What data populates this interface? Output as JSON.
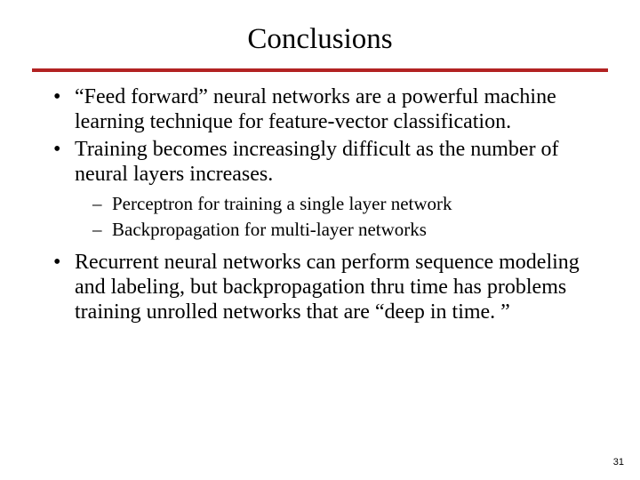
{
  "title": "Conclusions",
  "colors": {
    "rule": "#b22222",
    "text": "#000000",
    "background": "#ffffff"
  },
  "typography": {
    "title_fontsize": 33,
    "bullet_fontsize": 24,
    "subbullet_fontsize": 21,
    "font_family": "Times New Roman"
  },
  "bullets": {
    "b1": "“Feed forward” neural networks are a powerful machine learning technique for feature-vector classification.",
    "b2": "Training becomes increasingly difficult as the number of neural layers increases.",
    "b2_sub": {
      "s1": "Perceptron for training a single layer network",
      "s2": "Backpropagation for multi-layer networks"
    },
    "b3": "Recurrent neural networks can perform sequence modeling and labeling, but backpropagation thru time has problems training unrolled networks that are “deep in time. ”"
  },
  "page_number": "31"
}
